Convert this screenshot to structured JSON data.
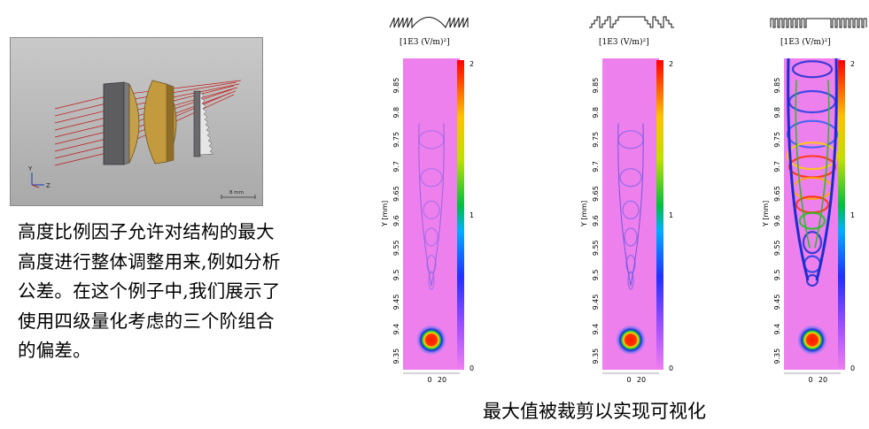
{
  "description_lines": [
    "高度比例因子允许对结构的最大",
    "高度进行整体调整用来,例如分析",
    "公差。在这个例子中,我们展示了",
    "使用四级量化考虑的三个阶组合",
    "的偏差。"
  ],
  "caption": "最大值被裁剪以实现可视化",
  "scene": {
    "axis_y": "Y",
    "axis_z": "Z",
    "scale_label": "8 mm"
  },
  "chart_data": [
    {
      "type": "heatmap",
      "profile": "smooth-arc",
      "unit_label": "[1E3 (V/m)²]",
      "ylabel": "Y [mm]",
      "y_ticks": [
        "9.85",
        "9.8",
        "9.75",
        "9.7",
        "9.65",
        "9.6",
        "9.55",
        "9.5",
        "9.45",
        "9.4",
        "9.35"
      ],
      "x_ticks": [
        "0",
        "20"
      ],
      "colorbar_ticks": [
        "2",
        "1",
        "0"
      ],
      "focus_y": 9.38,
      "spot_intensity": 2,
      "background_intensity": 0.05
    },
    {
      "type": "heatmap",
      "profile": "four-level-steps",
      "unit_label": "[1E3 (V/m)²]",
      "ylabel": "Y [mm]",
      "y_ticks": [
        "9.85",
        "9.8",
        "9.75",
        "9.7",
        "9.65",
        "9.6",
        "9.55",
        "9.5",
        "9.45",
        "9.4",
        "9.35"
      ],
      "x_ticks": [
        "0",
        "20"
      ],
      "colorbar_ticks": [
        "2",
        "1",
        "0"
      ],
      "focus_y": 9.38,
      "spot_intensity": 2,
      "background_intensity": 0.05
    },
    {
      "type": "heatmap",
      "profile": "binary-steps",
      "unit_label": "[1E3 (V/m)²]",
      "ylabel": "Y [mm]",
      "y_ticks": [
        "9.85",
        "9.8",
        "9.75",
        "9.7",
        "9.65",
        "9.6",
        "9.55",
        "9.5",
        "9.45",
        "9.4",
        "9.35"
      ],
      "x_ticks": [
        "0",
        "20"
      ],
      "colorbar_ticks": [
        "2",
        "1",
        "0"
      ],
      "focus_y": 9.38,
      "spot_intensity": 2,
      "background_intensity": 0.05
    }
  ],
  "colors": {
    "background": "#ee80ee",
    "low": "#2030d0",
    "mid": "#20c020",
    "high": "#ff2000"
  }
}
